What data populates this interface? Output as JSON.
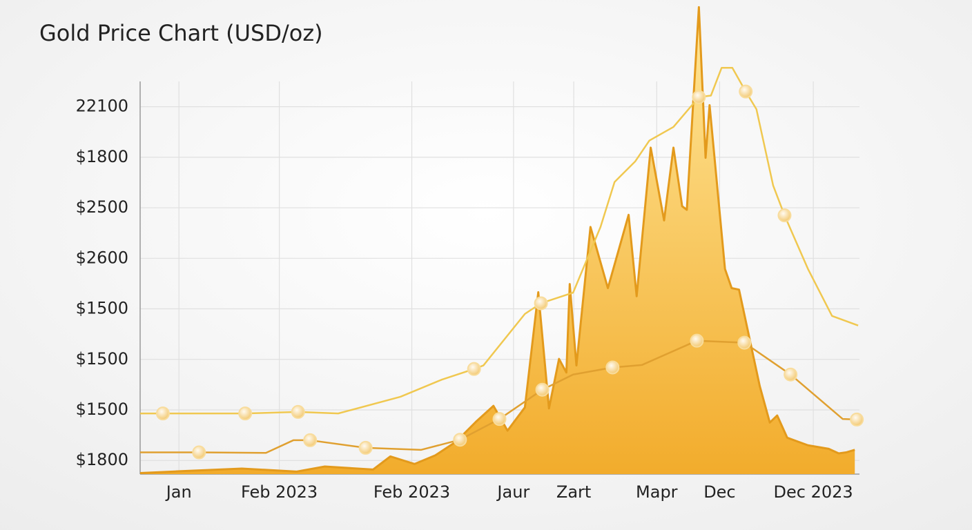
{
  "chart_data": {
    "type": "line",
    "title": "Gold Price Chart (USD/oz)",
    "xlim": [
      0,
      10.75
    ],
    "xticks": [
      {
        "value": 0.58,
        "label": "Jan"
      },
      {
        "value": 2.08,
        "label": "Feb 2023"
      },
      {
        "value": 4.06,
        "label": "Feb 2023"
      },
      {
        "value": 5.58,
        "label": "Jaur"
      },
      {
        "value": 6.48,
        "label": "Zart"
      },
      {
        "value": 7.72,
        "label": "Mapr"
      },
      {
        "value": 8.66,
        "label": "Dec"
      },
      {
        "value": 10.06,
        "label": "Dec 2023"
      }
    ],
    "ylim": [
      -0.27,
      7.5
    ],
    "yticks": [
      {
        "value": 0,
        "label": "$1800"
      },
      {
        "value": 1,
        "label": "$1500"
      },
      {
        "value": 2,
        "label": "$1500"
      },
      {
        "value": 3,
        "label": "$1500"
      },
      {
        "value": 4,
        "label": "$2600"
      },
      {
        "value": 5,
        "label": "$2500"
      },
      {
        "value": 6,
        "label": "$1800"
      },
      {
        "value": 7,
        "label": "22100"
      }
    ],
    "grid": true,
    "series": [
      {
        "color": "#f0c850",
        "style": "line",
        "x": [
          0,
          0.34,
          1.57,
          2.36,
          2.96,
          3.89,
          4.51,
          4.99,
          5.13,
          5.75,
          5.99,
          6.47,
          6.88,
          7.09,
          7.4,
          7.61,
          7.97,
          8.35,
          8.53,
          8.69,
          8.85,
          9.05,
          9.21,
          9.46,
          9.63,
          9.98,
          10.34,
          10.73
        ],
        "values": [
          0.93,
          0.93,
          0.93,
          0.96,
          0.93,
          1.26,
          1.6,
          1.81,
          1.88,
          2.9,
          3.11,
          3.32,
          4.62,
          5.51,
          5.92,
          6.33,
          6.6,
          7.19,
          7.22,
          7.77,
          7.77,
          7.3,
          6.95,
          5.44,
          4.85,
          3.79,
          2.86,
          2.67
        ],
        "markers": [
          1,
          2,
          3,
          7,
          10,
          17,
          21,
          24
        ]
      },
      {
        "color": "#e0a030",
        "style": "line",
        "x": [
          0,
          0.88,
          1.88,
          2.29,
          2.54,
          3.37,
          4.2,
          4.78,
          5.37,
          6.01,
          6.47,
          7.06,
          7.5,
          8.32,
          9.03,
          9.72,
          10.5,
          10.71
        ],
        "values": [
          0.16,
          0.16,
          0.15,
          0.4,
          0.4,
          0.25,
          0.21,
          0.41,
          0.82,
          1.4,
          1.7,
          1.84,
          1.89,
          2.37,
          2.33,
          1.7,
          0.82,
          0.81
        ],
        "markers": [
          1,
          4,
          5,
          7,
          8,
          9,
          11,
          13,
          14,
          15,
          17
        ]
      },
      {
        "color": "#e39a1c",
        "style": "area",
        "x": [
          0,
          0.49,
          1.52,
          2.34,
          2.76,
          3.48,
          3.74,
          4.1,
          4.41,
          4.72,
          5.03,
          5.28,
          5.49,
          5.75,
          5.95,
          6.11,
          6.26,
          6.37,
          6.42,
          6.52,
          6.73,
          6.99,
          7.3,
          7.42,
          7.63,
          7.83,
          7.97,
          8.1,
          8.17,
          8.35,
          8.45,
          8.51,
          8.74,
          8.84,
          8.95,
          9.26,
          9.41,
          9.52,
          9.67,
          9.98,
          10.29,
          10.44,
          10.55,
          10.68
        ],
        "values": [
          -0.25,
          -0.22,
          -0.16,
          -0.22,
          -0.12,
          -0.18,
          0.08,
          -0.07,
          0.1,
          0.37,
          0.78,
          1.08,
          0.59,
          1.05,
          3.33,
          1.03,
          2.01,
          1.74,
          3.49,
          1.88,
          4.62,
          3.41,
          4.86,
          3.25,
          6.19,
          4.75,
          6.19,
          5.03,
          4.96,
          8.97,
          5.99,
          7.03,
          3.79,
          3.41,
          3.38,
          1.47,
          0.75,
          0.89,
          0.45,
          0.3,
          0.23,
          0.14,
          0.16,
          0.21
        ]
      }
    ]
  }
}
